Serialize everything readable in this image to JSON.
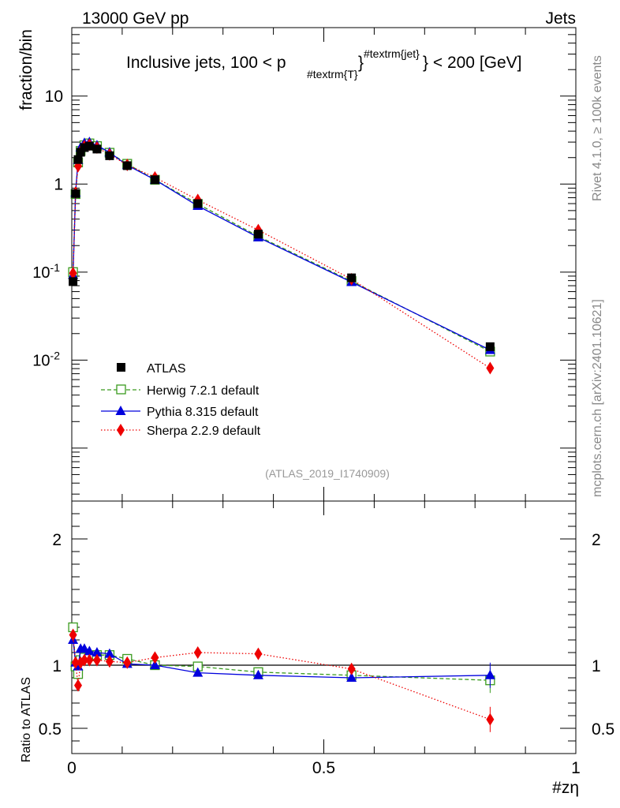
{
  "header": {
    "left": "13000 GeV pp",
    "right": "Jets"
  },
  "side_labels": {
    "rivet": "Rivet 4.1.0, ≥ 100k events",
    "mcplots": "mcplots.cern.ch [arXiv:2401.10621]"
  },
  "chart_data": {
    "type": "line",
    "title_parts": {
      "main": "Inclusive jets, 100 < p",
      "sub": "#textrm{T}",
      "sup": "#textrm{jet}",
      "tail": "} < 200 [GeV]"
    },
    "xlabel": "#zη",
    "ylabel": "fraction/bin",
    "ratio_ylabel": "Ratio to ATLAS",
    "xlim": [
      0,
      1
    ],
    "ylim": [
      0.00025,
      60
    ],
    "yscale": "log",
    "ratio_ylim": [
      0.3,
      2.3
    ],
    "analysis_id": "(ATLAS_2019_I1740909)",
    "x_ticks": [
      "0",
      "0.5",
      "1"
    ],
    "y_ticks": [
      {
        "base": "10",
        "exp": "-2",
        "value": 0.01
      },
      {
        "base": "10",
        "exp": "-1",
        "value": 0.1
      },
      {
        "base": "1",
        "exp": "",
        "value": 1
      },
      {
        "base": "10",
        "exp": "",
        "value": 10
      }
    ],
    "ratio_ticks": [
      "0.5",
      "1",
      "2"
    ],
    "x": [
      0.0025,
      0.0075,
      0.0125,
      0.0175,
      0.025,
      0.035,
      0.05,
      0.075,
      0.11,
      0.165,
      0.25,
      0.37,
      0.555,
      0.83
    ],
    "series": [
      {
        "name": "ATLAS",
        "marker": "square-filled",
        "color": "#000000",
        "values": [
          0.078,
          0.78,
          1.9,
          2.3,
          2.6,
          2.7,
          2.5,
          2.1,
          1.62,
          1.12,
          0.6,
          0.27,
          0.086,
          0.0142
        ]
      },
      {
        "name": "Herwig 7.2.1 default",
        "marker": "square-open",
        "color": "#3a9b1e",
        "dash": "dashed",
        "values": [
          0.1,
          0.77,
          1.76,
          2.38,
          2.76,
          2.9,
          2.7,
          2.27,
          1.7,
          1.12,
          0.595,
          0.255,
          0.079,
          0.0125
        ],
        "ratio": [
          1.3,
          0.99,
          0.93,
          1.04,
          1.06,
          1.07,
          1.08,
          1.08,
          1.05,
          1.0,
          0.99,
          0.945,
          0.92,
          0.88
        ]
      },
      {
        "name": "Pythia 8.315 default",
        "marker": "triangle",
        "color": "#0000dd",
        "dash": "solid",
        "values": [
          0.093,
          0.8,
          1.88,
          2.6,
          2.93,
          3.0,
          2.75,
          2.29,
          1.64,
          1.12,
          0.565,
          0.248,
          0.077,
          0.013
        ],
        "ratio": [
          1.2,
          1.02,
          0.99,
          1.13,
          1.13,
          1.11,
          1.1,
          1.09,
          1.01,
          1.0,
          0.94,
          0.92,
          0.9,
          0.92
        ]
      },
      {
        "name": "Sherpa 2.2.9 default",
        "marker": "diamond",
        "color": "#ee0000",
        "dash": "dotted",
        "values": [
          0.097,
          0.8,
          1.6,
          2.35,
          2.7,
          2.8,
          2.6,
          2.17,
          1.65,
          1.19,
          0.66,
          0.3,
          0.083,
          0.0081
        ],
        "ratio": [
          1.24,
          1.02,
          0.84,
          1.02,
          1.04,
          1.04,
          1.04,
          1.03,
          1.02,
          1.06,
          1.1,
          1.09,
          0.97,
          0.57
        ]
      }
    ]
  }
}
